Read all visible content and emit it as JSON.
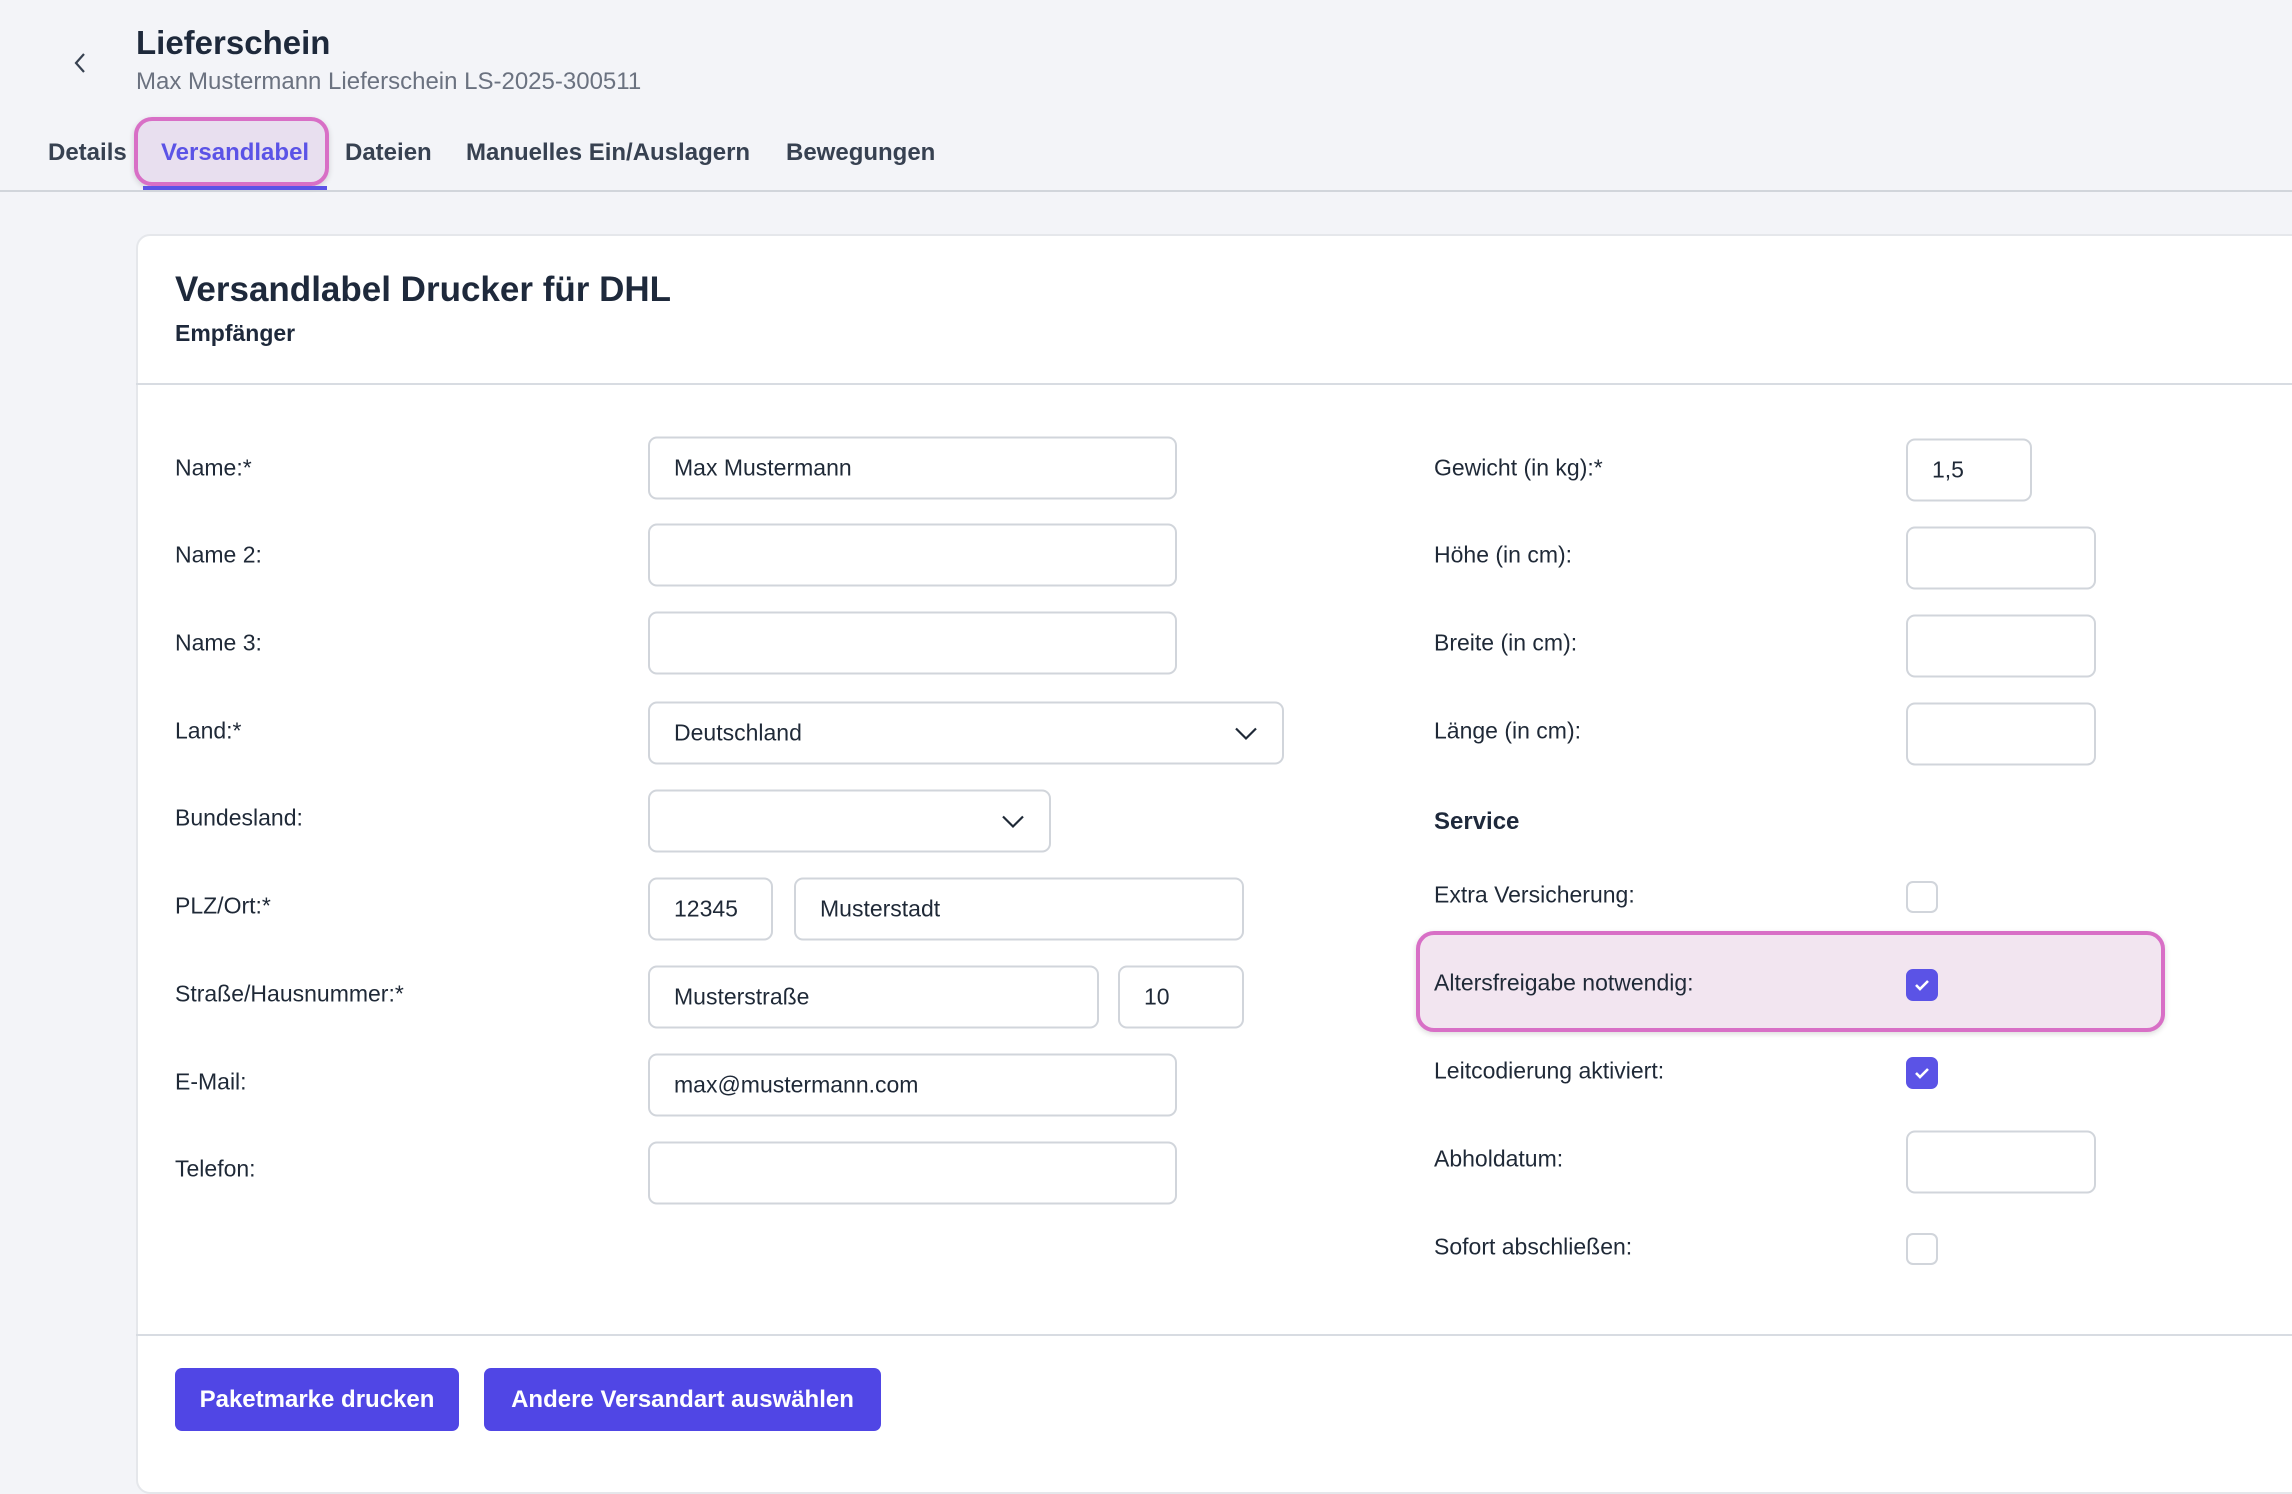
{
  "header": {
    "title": "Lieferschein",
    "subtitle": "Max Mustermann Lieferschein LS-2025-300511"
  },
  "tabs": [
    {
      "label": "Details",
      "active": false
    },
    {
      "label": "Versandlabel",
      "active": true
    },
    {
      "label": "Dateien",
      "active": false
    },
    {
      "label": "Manuelles Ein/Auslagern",
      "active": false
    },
    {
      "label": "Bewegungen",
      "active": false
    }
  ],
  "card": {
    "title": "Versandlabel Drucker für DHL",
    "subtitle": "Empfänger"
  },
  "recipient": {
    "name": {
      "label": "Name:*",
      "value": "Max Mustermann"
    },
    "name2": {
      "label": "Name 2:",
      "value": ""
    },
    "name3": {
      "label": "Name 3:",
      "value": ""
    },
    "country": {
      "label": "Land:*",
      "value": "Deutschland"
    },
    "state": {
      "label": "Bundesland:",
      "value": ""
    },
    "zip_city": {
      "label": "PLZ/Ort:*",
      "zip": "12345",
      "city": "Musterstadt"
    },
    "street": {
      "label": "Straße/Hausnummer:*",
      "street": "Musterstraße",
      "number": "10"
    },
    "email": {
      "label": "E-Mail:",
      "value": "max@mustermann.com"
    },
    "phone": {
      "label": "Telefon:",
      "value": ""
    }
  },
  "package": {
    "weight": {
      "label": "Gewicht (in kg):*",
      "value": "1,5"
    },
    "height": {
      "label": "Höhe (in cm):",
      "value": ""
    },
    "width": {
      "label": "Breite (in cm):",
      "value": ""
    },
    "length": {
      "label": "Länge (in cm):",
      "value": ""
    }
  },
  "service": {
    "heading": "Service",
    "extra_insurance": {
      "label": "Extra Versicherung:",
      "checked": false
    },
    "age_check": {
      "label": "Altersfreigabe notwendig:",
      "checked": true
    },
    "routing_code": {
      "label": "Leitcodierung aktiviert:",
      "checked": true
    },
    "pickup_date": {
      "label": "Abholdatum:",
      "value": ""
    },
    "close_immediately": {
      "label": "Sofort abschließen:",
      "checked": false
    }
  },
  "actions": {
    "print": "Paketmarke drucken",
    "other": "Andere Versandart auswählen"
  },
  "colors": {
    "accent": "#5046e5",
    "highlight": "#d86fc6"
  }
}
